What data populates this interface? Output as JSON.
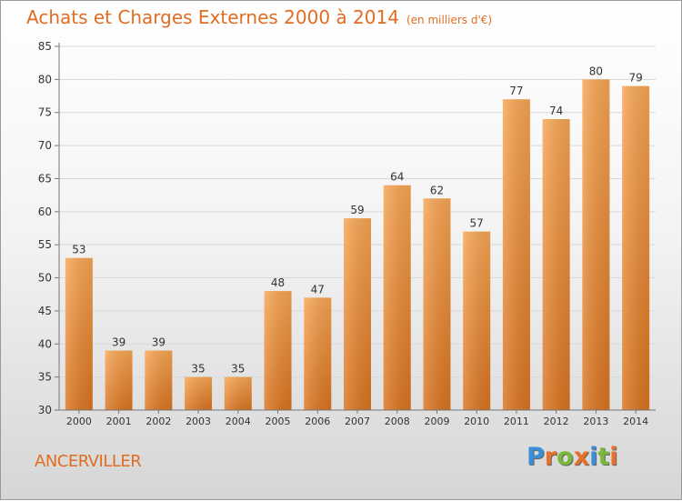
{
  "chart_data": {
    "type": "bar",
    "title": "Achats et Charges Externes 2000 à 2014",
    "subtitle": "(en milliers d'€)",
    "categories": [
      "2000",
      "2001",
      "2002",
      "2003",
      "2004",
      "2005",
      "2006",
      "2007",
      "2008",
      "2009",
      "2010",
      "2011",
      "2012",
      "2013",
      "2014"
    ],
    "values": [
      53,
      39,
      39,
      35,
      35,
      48,
      47,
      59,
      64,
      62,
      57,
      77,
      74,
      80,
      79
    ],
    "ylim": [
      30,
      85
    ],
    "yticks": [
      30,
      35,
      40,
      45,
      50,
      55,
      60,
      65,
      70,
      75,
      80,
      85
    ],
    "grid": true,
    "bar_color_top": "#f7a553",
    "bar_color_bottom": "#d9731f"
  },
  "footer": {
    "commune": "ANCERVILLER",
    "logo_letters": [
      "P",
      "r",
      "o",
      "x",
      "i",
      "t",
      "i"
    ],
    "logo_colors": [
      "#3a8fd8",
      "#e8702a",
      "#7ab83a",
      "#e8702a",
      "#3a8fd8",
      "#7ab83a",
      "#e8702a"
    ]
  }
}
